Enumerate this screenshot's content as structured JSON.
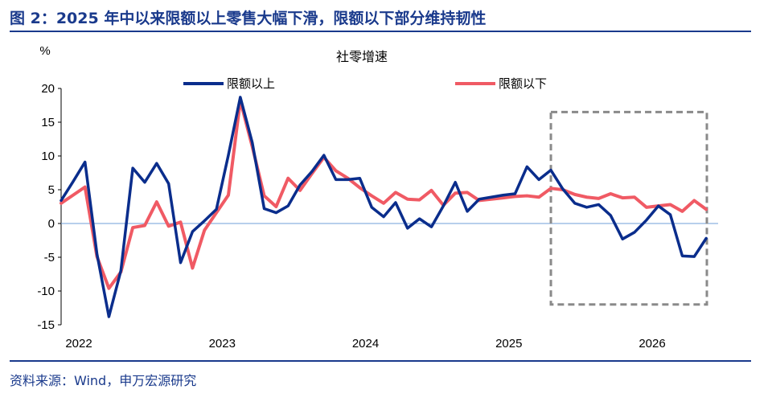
{
  "figure": {
    "title": "图 2：2025 年中以来限额以上零售大幅下滑，限额以下部分维持韧性",
    "source": "资料来源：Wind，申万宏源研究"
  },
  "chart_data": {
    "type": "line",
    "title": "社零增速",
    "ylabel": "%",
    "ylim": [
      -15,
      20
    ],
    "yticks": [
      20,
      15,
      10,
      5,
      0,
      -5,
      -10,
      -15
    ],
    "xlim": [
      "2022-01",
      "2026-08"
    ],
    "xtick_labels": [
      "2022",
      "2023",
      "2024",
      "2025",
      "2026"
    ],
    "x": [
      "2022-01",
      "2022-02",
      "2022-03",
      "2022-04",
      "2022-05",
      "2022-06",
      "2022-07",
      "2022-08",
      "2022-09",
      "2022-10",
      "2022-11",
      "2022-12",
      "2023-01",
      "2023-02",
      "2023-03",
      "2023-04",
      "2023-05",
      "2023-06",
      "2023-07",
      "2023-08",
      "2023-09",
      "2023-10",
      "2023-11",
      "2023-12",
      "2024-01",
      "2024-02",
      "2024-03",
      "2024-04",
      "2024-05",
      "2024-06",
      "2024-07",
      "2024-08",
      "2024-09",
      "2024-10",
      "2024-11",
      "2024-12",
      "2025-01",
      "2025-02",
      "2025-03",
      "2025-04",
      "2025-05",
      "2025-06",
      "2025-07",
      "2025-08",
      "2025-09",
      "2025-10",
      "2025-11",
      "2025-12",
      "2026-01",
      "2026-02",
      "2026-03",
      "2026-04",
      "2026-05",
      "2026-06",
      "2026-07"
    ],
    "series": [
      {
        "name": "限额以上",
        "color": "#0a2d8c",
        "values": [
          3.4,
          6.2,
          9.1,
          -4.5,
          -13.8,
          -7.0,
          8.2,
          6.1,
          8.9,
          5.9,
          -5.8,
          -1.2,
          0.4,
          2.1,
          10.1,
          18.7,
          12.0,
          2.2,
          1.6,
          2.6,
          5.7,
          7.7,
          10.1,
          6.5,
          6.5,
          6.7,
          2.4,
          1.0,
          3.1,
          -0.7,
          0.7,
          -0.5,
          2.6,
          6.1,
          1.8,
          3.6,
          3.9,
          4.2,
          4.4,
          8.4,
          6.5,
          7.9,
          5.1,
          3.0,
          2.4,
          2.8,
          1.2,
          -2.3,
          -1.3,
          0.5,
          2.6,
          1.3,
          -4.8,
          -4.9,
          -2.2
        ]
      },
      {
        "name": "限额以下",
        "color": "#f05a64",
        "values": [
          3.0,
          4.2,
          5.4,
          -4.9,
          -9.6,
          -7.2,
          -0.6,
          -0.3,
          3.2,
          -0.4,
          0.2,
          -6.6,
          -1.0,
          1.6,
          4.2,
          18.2,
          11.4,
          4.1,
          2.5,
          6.7,
          4.9,
          7.4,
          9.8,
          7.8,
          6.7,
          5.3,
          4.1,
          3.0,
          4.6,
          3.6,
          3.5,
          4.9,
          2.7,
          4.5,
          4.6,
          3.4,
          3.6,
          3.8,
          4.0,
          4.1,
          3.9,
          5.2,
          5.0,
          4.3,
          3.9,
          3.7,
          4.4,
          3.8,
          3.9,
          2.4,
          2.6,
          2.8,
          1.8,
          3.4,
          2.1
        ]
      }
    ],
    "highlight_box": {
      "from": "2025-06",
      "to": "2026-08",
      "y_from": -12,
      "y_to": 16.5,
      "style": "dashed",
      "color": "#8a8a8a"
    },
    "zero_line_color": "#6f9fd8",
    "grid": false,
    "legend_position": "top"
  }
}
